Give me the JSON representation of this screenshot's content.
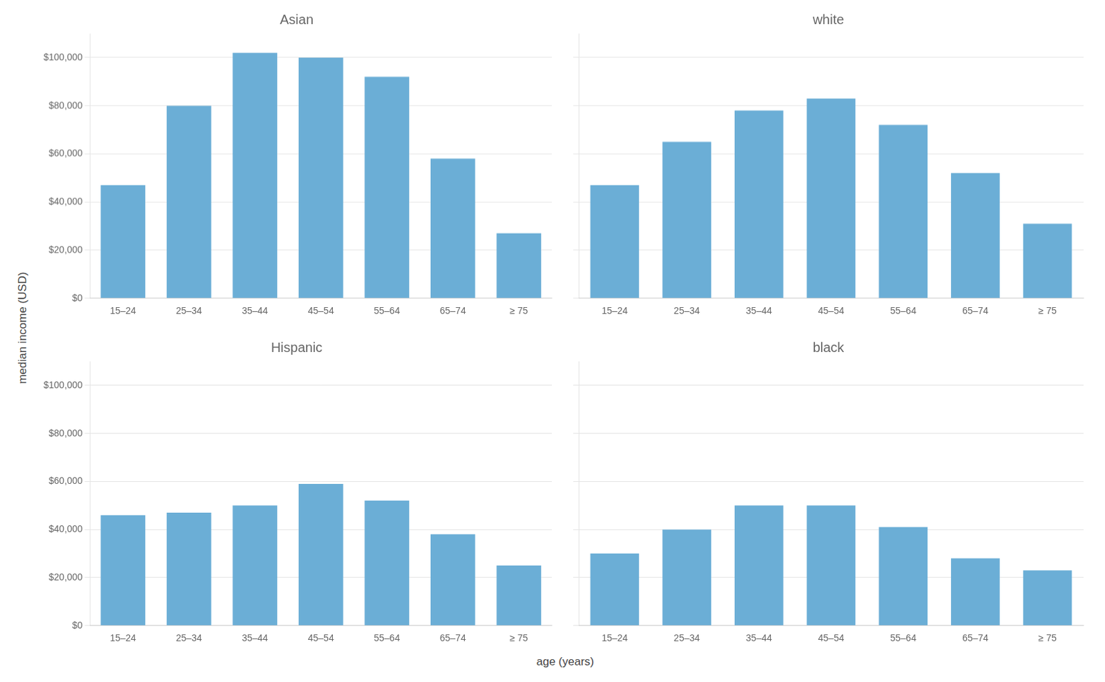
{
  "ylabel": "median income (USD)",
  "xlabel": "age (years)",
  "chart_data": [
    {
      "type": "bar",
      "title": "Asian",
      "categories": [
        "15–24",
        "25–34",
        "35–44",
        "45–54",
        "55–64",
        "65–74",
        "≥ 75"
      ],
      "values": [
        47000,
        80000,
        102000,
        100000,
        92000,
        58000,
        27000
      ],
      "color": "#6baed6",
      "ylim": [
        0,
        110000
      ],
      "yticks": [
        {
          "value": 0,
          "label": "$0"
        },
        {
          "value": 20000,
          "label": "$20,000"
        },
        {
          "value": 40000,
          "label": "$40,000"
        },
        {
          "value": 60000,
          "label": "$60,000"
        },
        {
          "value": 80000,
          "label": "$80,000"
        },
        {
          "value": 100000,
          "label": "$100,000"
        }
      ],
      "grid": true
    },
    {
      "type": "bar",
      "title": "white",
      "categories": [
        "15–24",
        "25–34",
        "35–44",
        "45–54",
        "55–64",
        "65–74",
        "≥ 75"
      ],
      "values": [
        47000,
        65000,
        78000,
        83000,
        72000,
        52000,
        31000
      ],
      "color": "#6baed6",
      "ylim": [
        0,
        110000
      ],
      "yticks": [
        0,
        20000,
        40000,
        60000,
        80000,
        100000
      ],
      "grid": true,
      "tick_labels": "x"
    },
    {
      "type": "bar",
      "title": "Hispanic",
      "categories": [
        "15–24",
        "25–34",
        "35–44",
        "45–54",
        "55–64",
        "65–74",
        "≥ 75"
      ],
      "values": [
        46000,
        47000,
        50000,
        59000,
        52000,
        38000,
        25000
      ],
      "color": "#6baed6",
      "ylim": [
        0,
        110000
      ],
      "yticks": [
        {
          "value": 0,
          "label": "$0"
        },
        {
          "value": 20000,
          "label": "$20,000"
        },
        {
          "value": 40000,
          "label": "$40,000"
        },
        {
          "value": 60000,
          "label": "$60,000"
        },
        {
          "value": 80000,
          "label": "$80,000"
        },
        {
          "value": 100000,
          "label": "$100,000"
        }
      ],
      "grid": true
    },
    {
      "type": "bar",
      "title": "black",
      "categories": [
        "15–24",
        "25–34",
        "35–44",
        "45–54",
        "55–64",
        "65–74",
        "≥ 75"
      ],
      "values": [
        30000,
        40000,
        50000,
        50000,
        41000,
        28000,
        23000
      ],
      "color": "#6baed6",
      "ylim": [
        0,
        110000
      ],
      "yticks": [
        0,
        20000,
        40000,
        60000,
        80000,
        100000
      ],
      "grid": true,
      "tick_labels": "x"
    }
  ]
}
